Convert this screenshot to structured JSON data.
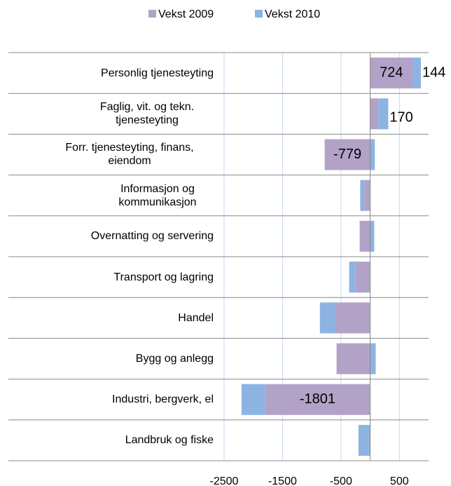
{
  "chart_data": {
    "type": "bar",
    "orientation": "horizontal",
    "stacked": true,
    "categories": [
      "Personlig tjenesteyting",
      "Faglig, vit. og tekn. tjenesteyting",
      "Forr. tjenesteyting, finans, eiendom",
      "Informasjon og kommunikasjon",
      "Overnatting og servering",
      "Transport og lagring",
      "Handel",
      "Bygg og anlegg",
      "Industri, bergverk, el",
      "Landbruk og fiske"
    ],
    "series": [
      {
        "name": "Vekst 2009",
        "color": "#b3a2c7",
        "values": [
          724,
          140,
          -779,
          -100,
          -180,
          -250,
          -600,
          -575,
          -1801,
          -20
        ],
        "value_labels": [
          "724",
          null,
          "-779",
          null,
          null,
          null,
          null,
          null,
          "-1801",
          null
        ]
      },
      {
        "name": "Vekst 2010",
        "color": "#8db3e2",
        "values": [
          144,
          170,
          80,
          -70,
          70,
          -110,
          -260,
          95,
          -400,
          -180
        ],
        "value_labels": [
          "144",
          "170",
          null,
          null,
          null,
          null,
          null,
          null,
          null,
          null
        ]
      }
    ],
    "xlim": [
      -2500,
      1000
    ],
    "xticks": [
      -2500,
      -1500,
      -500,
      500
    ],
    "grid": true,
    "legend": "top"
  }
}
